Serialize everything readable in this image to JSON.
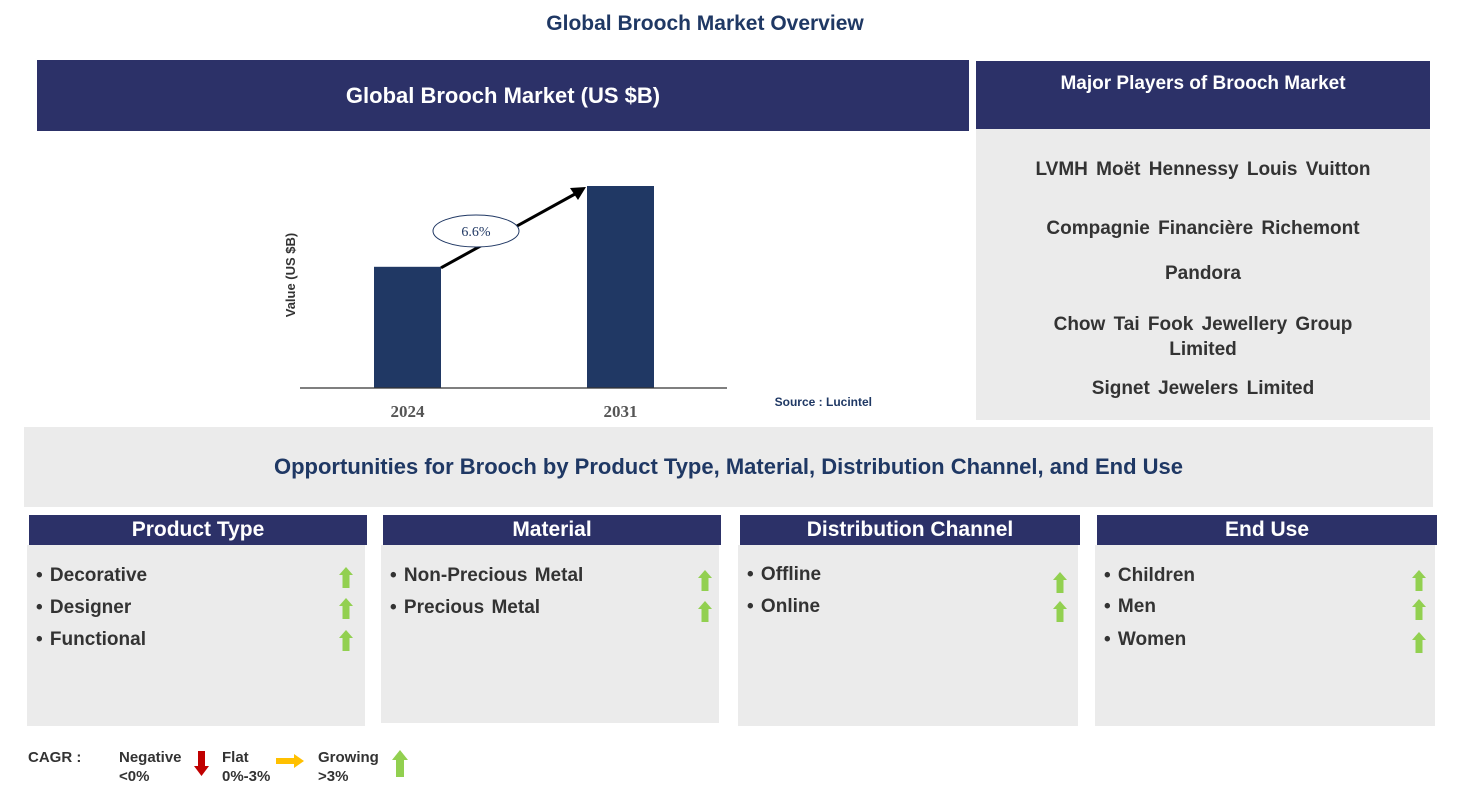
{
  "title": "Global Brooch Market Overview",
  "chart_header": "Global Brooch Market (US $B)",
  "chart_data": {
    "type": "bar",
    "title": "Global Brooch Market (US $B)",
    "categories": [
      "2024",
      "2031"
    ],
    "values": [
      0.6,
      1.0
    ],
    "values_note": "relative",
    "ylabel": "Value (US $B)",
    "xlabel": "",
    "cagr_annotation": "6.6%",
    "source": "Source : Lucintel",
    "color": "#203864"
  },
  "players": {
    "header": "Major Players of Brooch Market",
    "items": [
      "LVMH Moët Hennessy Louis Vuitton",
      "Compagnie Financière Richemont",
      "Pandora",
      "Chow Tai Fook Jewellery Group Limited",
      "Signet Jewelers Limited"
    ]
  },
  "opportunities": "Opportunities for Brooch by Product Type, Material, Distribution Channel, and End Use",
  "segments": [
    {
      "title": "Product Type",
      "items": [
        "• Decorative",
        "• Designer",
        "• Functional"
      ]
    },
    {
      "title": "Material",
      "items": [
        "• Non-Precious Metal",
        "• Precious Metal"
      ]
    },
    {
      "title": "Distribution Channel",
      "items": [
        "• Offline",
        "• Online"
      ]
    },
    {
      "title": "End Use",
      "items": [
        "• Children",
        "• Men",
        "• Women"
      ]
    }
  ],
  "legend": {
    "label": "CAGR :",
    "negative": "Negative",
    "negative_range": "<0%",
    "flat": "Flat",
    "flat_range": "0%-3%",
    "growing": "Growing",
    "growing_range": ">3%"
  },
  "colors": {
    "navy": "#2c3168",
    "bar": "#203864",
    "green": "#92d050",
    "red": "#c00000",
    "amber": "#ffc000"
  }
}
